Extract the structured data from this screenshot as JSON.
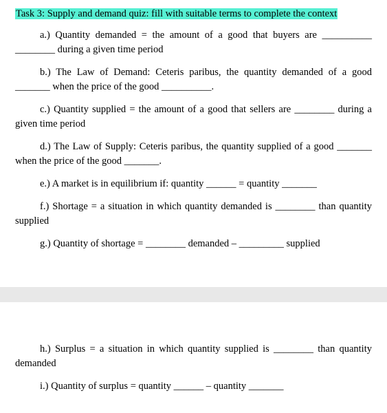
{
  "heading": "Task 3: Supply and demand quiz: fill with suitable terms to complete the context",
  "items": {
    "a": "a.) Quantity demanded = the amount of a good that buyers are __________ ________ during a given time period",
    "b": "b.) The Law of Demand: Ceteris paribus, the quantity demanded of a good _______ when the price of the good __________.",
    "c": "c.) Quantity supplied = the amount of a good that sellers are ________ during a given time period",
    "d": "d.) The Law of Supply: Ceteris paribus, the quantity supplied of a good _______ when the price of the good _______.",
    "e": "e.) A market is in equilibrium if: quantity ______ = quantity _______",
    "f": "f.) Shortage = a situation in which quantity demanded is ________ than quantity supplied",
    "g": "g.) Quantity of shortage = ________ demanded – _________ supplied",
    "h": "h.) Surplus = a situation in which quantity supplied is ________ than quantity demanded",
    "i": "i.) Quantity of surplus = quantity ______ – quantity _______"
  }
}
